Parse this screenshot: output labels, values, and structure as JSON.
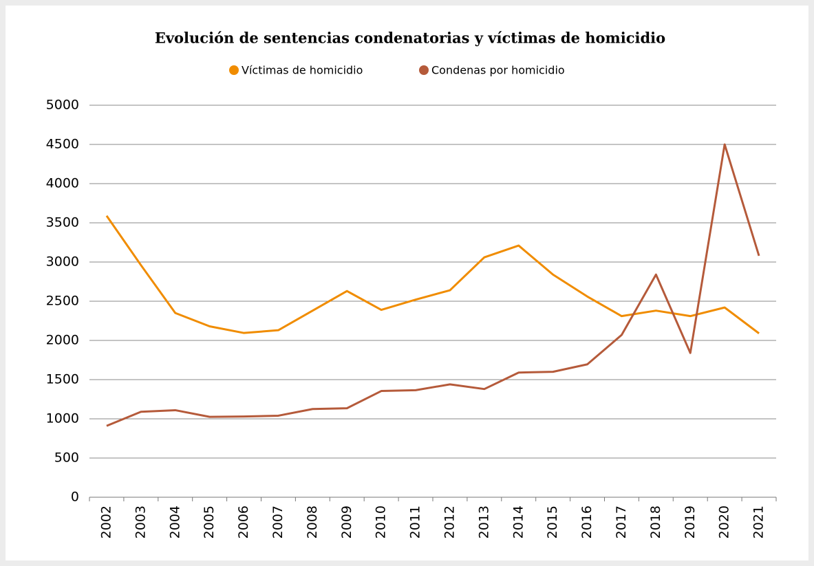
{
  "chart_data": {
    "type": "line",
    "title": "Evolución de sentencias condenatorias y víctimas de homicidio",
    "categories": [
      "2002",
      "2003",
      "2004",
      "2005",
      "2006",
      "2007",
      "2008",
      "2009",
      "2010",
      "2011",
      "2012",
      "2013",
      "2014",
      "2015",
      "2016",
      "2017",
      "2018",
      "2019",
      "2020",
      "2021"
    ],
    "series": [
      {
        "name": "Víctimas de homicidio",
        "color": "#f08c00",
        "values": [
          3590,
          2960,
          2350,
          2180,
          2095,
          2130,
          2380,
          2630,
          2390,
          2520,
          2640,
          3060,
          3210,
          2840,
          2560,
          2310,
          2380,
          2310,
          2420,
          2090
        ]
      },
      {
        "name": "Condenas por homicidio",
        "color": "#b55a3a",
        "values": [
          910,
          1090,
          1110,
          1025,
          1030,
          1040,
          1125,
          1135,
          1355,
          1365,
          1440,
          1380,
          1590,
          1600,
          1695,
          2070,
          2840,
          1840,
          4500,
          3080
        ]
      }
    ],
    "ylim": [
      0,
      5000
    ],
    "yticks": [
      0,
      500,
      1000,
      1500,
      2000,
      2500,
      3000,
      3500,
      4000,
      4500,
      5000
    ],
    "grid": true,
    "legend": "top"
  }
}
